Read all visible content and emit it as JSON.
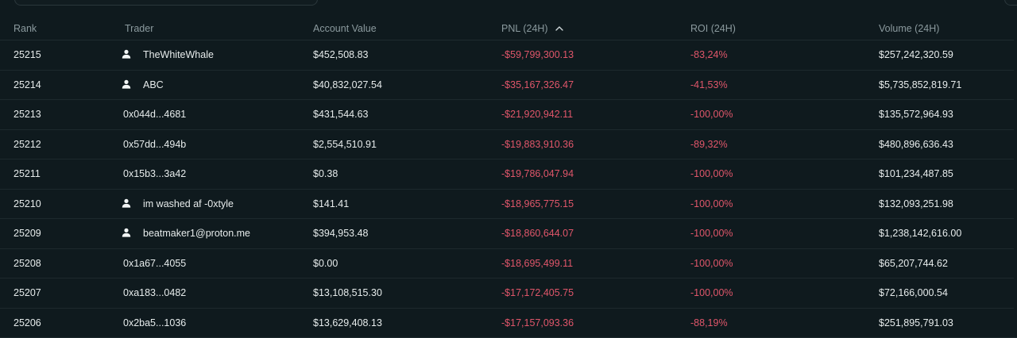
{
  "header": {
    "rank": "Rank",
    "trader": "Trader",
    "account_value": "Account Value",
    "pnl": "PNL (24H)",
    "roi": "ROI (24H)",
    "volume": "Volume (24H)"
  },
  "colors": {
    "negative": "#e0566a",
    "background": "#0f1a1e",
    "muted": "#8b9a9e"
  },
  "rows": [
    {
      "rank": "25215",
      "trader": "TheWhiteWhale",
      "has_user_icon": true,
      "account_value": "$452,508.83",
      "pnl": "-$59,799,300.13",
      "roi": "-83,24%",
      "volume": "$257,242,320.59"
    },
    {
      "rank": "25214",
      "trader": "ABC",
      "has_user_icon": true,
      "account_value": "$40,832,027.54",
      "pnl": "-$35,167,326.47",
      "roi": "-41,53%",
      "volume": "$5,735,852,819.71"
    },
    {
      "rank": "25213",
      "trader": "0x044d...4681",
      "has_user_icon": false,
      "account_value": "$431,544.63",
      "pnl": "-$21,920,942.11",
      "roi": "-100,00%",
      "volume": "$135,572,964.93"
    },
    {
      "rank": "25212",
      "trader": "0x57dd...494b",
      "has_user_icon": false,
      "account_value": "$2,554,510.91",
      "pnl": "-$19,883,910.36",
      "roi": "-89,32%",
      "volume": "$480,896,636.43"
    },
    {
      "rank": "25211",
      "trader": "0x15b3...3a42",
      "has_user_icon": false,
      "account_value": "$0.38",
      "pnl": "-$19,786,047.94",
      "roi": "-100,00%",
      "volume": "$101,234,487.85"
    },
    {
      "rank": "25210",
      "trader": "im washed af -0xtyle",
      "has_user_icon": true,
      "account_value": "$141.41",
      "pnl": "-$18,965,775.15",
      "roi": "-100,00%",
      "volume": "$132,093,251.98"
    },
    {
      "rank": "25209",
      "trader": "beatmaker1@proton.me",
      "has_user_icon": true,
      "account_value": "$394,953.48",
      "pnl": "-$18,860,644.07",
      "roi": "-100,00%",
      "volume": "$1,238,142,616.00"
    },
    {
      "rank": "25208",
      "trader": "0x1a67...4055",
      "has_user_icon": false,
      "account_value": "$0.00",
      "pnl": "-$18,695,499.11",
      "roi": "-100,00%",
      "volume": "$65,207,744.62"
    },
    {
      "rank": "25207",
      "trader": "0xa183...0482",
      "has_user_icon": false,
      "account_value": "$13,108,515.30",
      "pnl": "-$17,172,405.75",
      "roi": "-100,00%",
      "volume": "$72,166,000.54"
    },
    {
      "rank": "25206",
      "trader": "0x2ba5...1036",
      "has_user_icon": false,
      "account_value": "$13,629,408.13",
      "pnl": "-$17,157,093.36",
      "roi": "-88,19%",
      "volume": "$251,895,791.03"
    }
  ]
}
